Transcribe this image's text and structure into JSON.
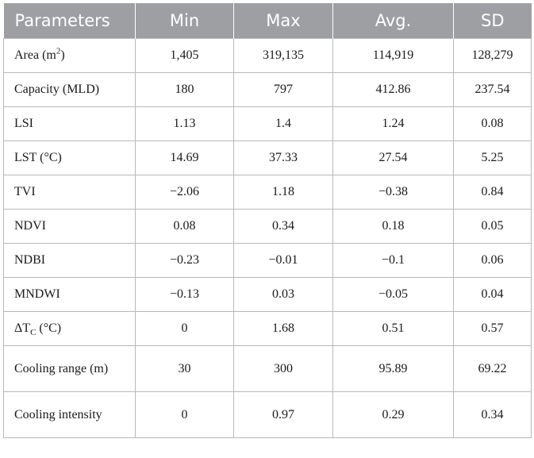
{
  "table": {
    "headers": [
      "Parameters",
      "Min",
      "Max",
      "Avg.",
      "SD"
    ],
    "rows": [
      {
        "param": "Area (m",
        "param_sup": "2",
        "param_tail": ")",
        "min": "1,405",
        "max": "319,135",
        "avg": "114,919",
        "sd": "128,279"
      },
      {
        "param": "Capacity (MLD)",
        "min": "180",
        "max": "797",
        "avg": "412.86",
        "sd": "237.54"
      },
      {
        "param": "LSI",
        "min": "1.13",
        "max": "1.4",
        "avg": "1.24",
        "sd": "0.08"
      },
      {
        "param": "LST (°C)",
        "min": "14.69",
        "max": "37.33",
        "avg": "27.54",
        "sd": "5.25"
      },
      {
        "param": "TVI",
        "min": "−2.06",
        "max": "1.18",
        "avg": "−0.38",
        "sd": "0.84"
      },
      {
        "param": "NDVI",
        "min": "0.08",
        "max": "0.34",
        "avg": "0.18",
        "sd": "0.05"
      },
      {
        "param": "NDBI",
        "min": "−0.23",
        "max": "−0.01",
        "avg": "−0.1",
        "sd": "0.06"
      },
      {
        "param": "MNDWI",
        "min": "−0.13",
        "max": "0.03",
        "avg": "−0.05",
        "sd": "0.04"
      },
      {
        "param": "ΔT",
        "param_sub": "C",
        "param_tail": " (°C)",
        "min": "0",
        "max": "1.68",
        "avg": "0.51",
        "sd": "0.57"
      },
      {
        "param": "Cooling range (m)",
        "min": "30",
        "max": "300",
        "avg": "95.89",
        "sd": "69.22"
      },
      {
        "param": "Cooling intensity",
        "min": "0",
        "max": "0.97",
        "avg": "0.29",
        "sd": "0.34"
      }
    ]
  },
  "colors": {
    "header_bg": "#9d9fa2",
    "header_text": "#ffffff",
    "grid_line": "#b9b9b9"
  }
}
